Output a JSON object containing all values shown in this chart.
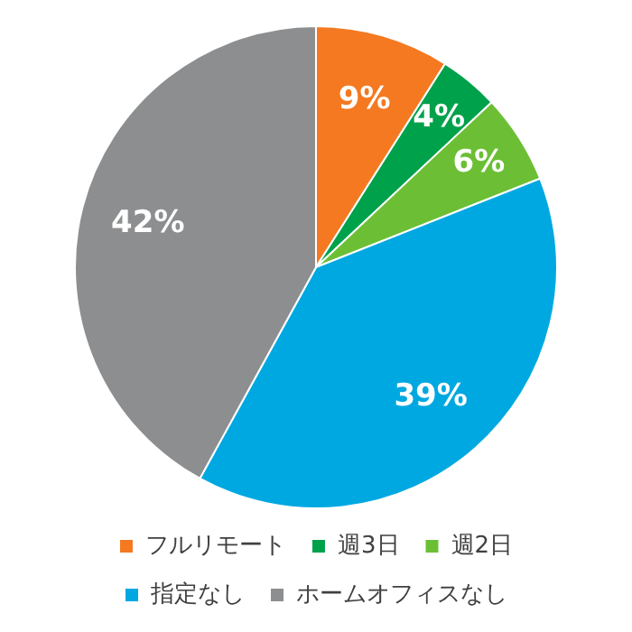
{
  "chart_data": {
    "type": "pie",
    "categories": [
      "フルリモート",
      "週3日",
      "週2日",
      "指定なし",
      "ホームオフィスなし"
    ],
    "values": [
      9,
      4,
      6,
      39,
      42
    ],
    "colors": [
      "#f47920",
      "#00a14b",
      "#6cbf35",
      "#00a8e1",
      "#8c8e90"
    ],
    "value_labels": [
      "9%",
      "4%",
      "6%",
      "39%",
      "42%"
    ],
    "legend": "bottom"
  }
}
